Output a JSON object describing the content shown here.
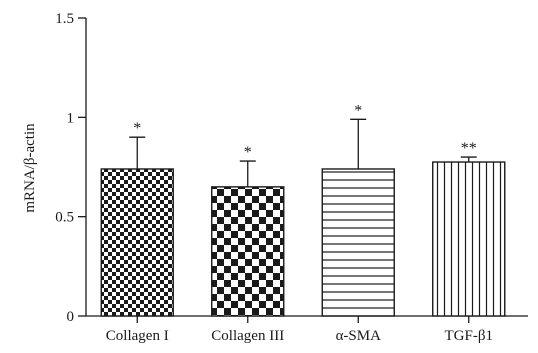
{
  "chart_data": {
    "type": "bar",
    "categories": [
      "Collagen I",
      "Collagen III",
      "α-SMA",
      "TGF-β1"
    ],
    "values": [
      0.74,
      0.65,
      0.74,
      0.775
    ],
    "errors_upper": [
      0.9,
      0.78,
      0.99,
      0.8
    ],
    "significance": [
      "*",
      "*",
      "*",
      "**"
    ],
    "ylabel": "mRNA/β-actin",
    "ylim": [
      0,
      1.5
    ],
    "yticks": [
      0,
      0.5,
      1,
      1.5
    ],
    "ytick_labels": [
      "0",
      "0.5",
      "1",
      "1.5"
    ],
    "patterns": [
      "fine-checker",
      "coarse-checker",
      "horizontal-lines",
      "vertical-lines"
    ],
    "grid": false,
    "legend": "none",
    "colors": {
      "ink": "#1a1a1a",
      "background": "#ffffff"
    }
  }
}
